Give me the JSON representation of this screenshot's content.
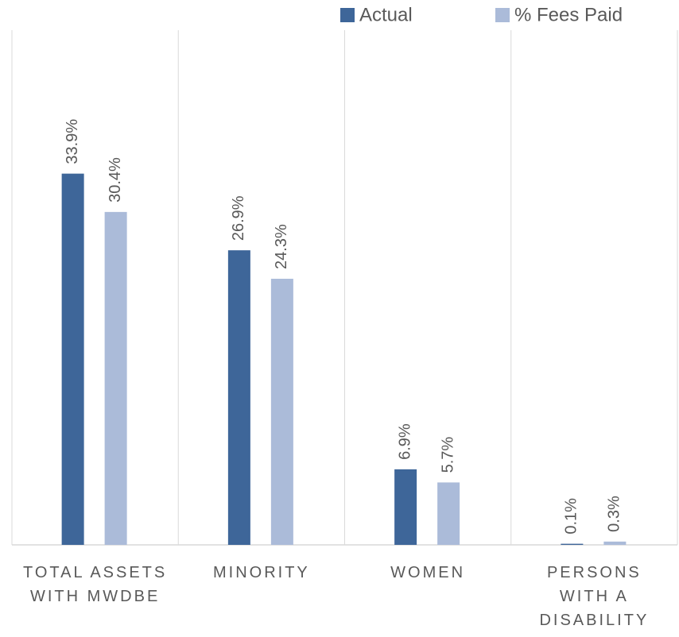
{
  "chart_data": {
    "type": "bar",
    "categories": [
      "TOTAL ASSETS\nWITH MWDBE",
      "MINORITY",
      "WOMEN",
      "PERSONS\nWITH A\nDISABILITY"
    ],
    "series": [
      {
        "name": "Actual",
        "color": "#3e6699",
        "values": [
          33.9,
          26.9,
          6.9,
          0.1
        ],
        "value_labels": [
          "33.9%",
          "26.9%",
          "6.9%",
          "0.1%"
        ]
      },
      {
        "name": "% Fees Paid",
        "color": "#abbbd9",
        "values": [
          30.4,
          24.3,
          5.7,
          0.3
        ],
        "value_labels": [
          "30.4%",
          "24.3%",
          "5.7%",
          "0.3%"
        ]
      }
    ],
    "ylim": [
      0,
      47
    ],
    "legend": "top"
  }
}
